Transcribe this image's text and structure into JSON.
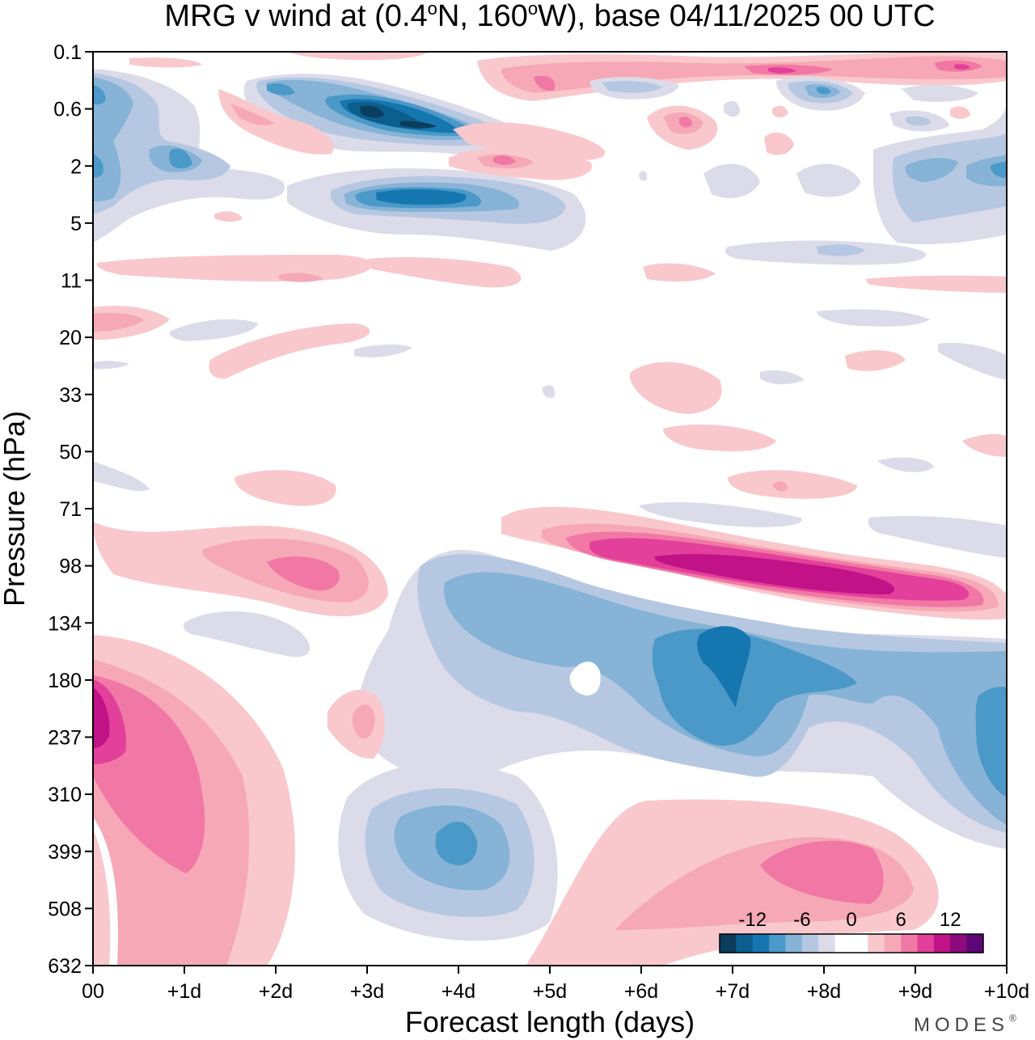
{
  "chart_data": {
    "type": "contour",
    "title": {
      "prefix": "MRG v wind at (0.4",
      "deg1": "o",
      "mid": "N, 160",
      "deg2": "o",
      "suffix": "W),  base 04/11/2025  00 UTC"
    },
    "xlabel": "Forecast length (days)",
    "ylabel": "Pressure (hPa)",
    "x_ticks": [
      "00",
      "+1d",
      "+2d",
      "+3d",
      "+4d",
      "+5d",
      "+6d",
      "+7d",
      "+8d",
      "+9d",
      "+10d"
    ],
    "x_range_days": [
      0,
      10
    ],
    "y_ticks": [
      "0.1",
      "0.6",
      "2",
      "5",
      "11",
      "20",
      "33",
      "50",
      "71",
      "98",
      "134",
      "180",
      "237",
      "310",
      "399",
      "508",
      "632"
    ],
    "y_levels_count": 16,
    "colorbar": {
      "tick_labels": [
        "-12",
        "-6",
        "0",
        "6",
        "12"
      ],
      "levels": [
        -15,
        -12,
        -10,
        -8,
        -6,
        -4,
        -2,
        0,
        2,
        4,
        6,
        8,
        10,
        12,
        15
      ],
      "colors": [
        "#0b3d5c",
        "#0c5e8e",
        "#1676b0",
        "#4a99c8",
        "#86b3d6",
        "#b6c8e1",
        "#dcdbea",
        "#ffffff",
        "#ffffff",
        "#f9c8cc",
        "#f6a8b6",
        "#f178a4",
        "#e2409a",
        "#c21287",
        "#8c0a7c",
        "#5c0775"
      ]
    },
    "features": [
      {
        "name": "upper-negative-core",
        "value": -14,
        "day": 3.6,
        "level": 1.0
      },
      {
        "name": "upper-negative-band",
        "value": -12,
        "day": 3.6,
        "level": 2.6
      },
      {
        "name": "lower-strat-positive-jet",
        "value": 14,
        "day": 7.8,
        "level": 9.1
      },
      {
        "name": "upper-trop-negative-center",
        "value": -10,
        "day": 7.0,
        "level": 10.6
      },
      {
        "name": "surface-positive-max",
        "value": 12,
        "day": 0.05,
        "level": 12.0
      },
      {
        "name": "mid-trop-negative",
        "value": -8,
        "day": 4.0,
        "level": 13.8
      },
      {
        "name": "mid-trop-positive",
        "value": 8,
        "day": 8.0,
        "level": 13.9
      }
    ]
  },
  "brand": {
    "name": "MODES",
    "mark": "®"
  }
}
